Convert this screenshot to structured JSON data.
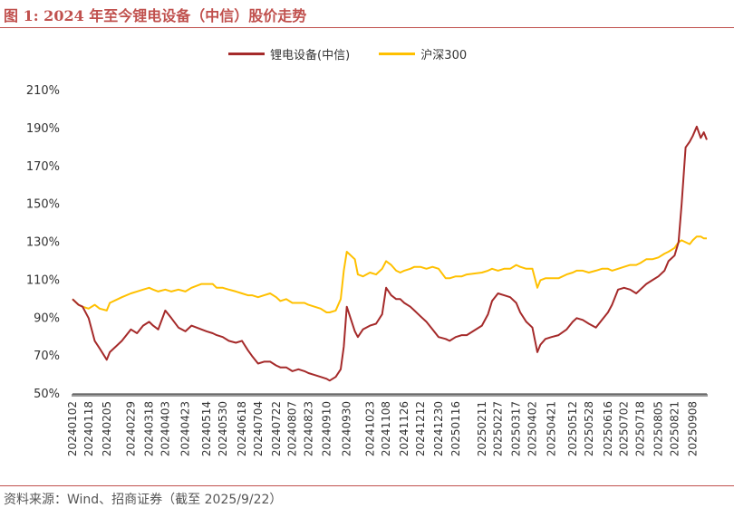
{
  "title": "图 1:  2024 年至今锂电设备（中信）股价走势",
  "source": "资料来源：Wind、招商证券（截至 2025/9/22）",
  "colors": {
    "accent": "#c0504d",
    "series_lithium": "#a52a2a",
    "series_hs300": "#ffc000"
  },
  "chart_data": {
    "type": "line",
    "ylim": [
      0.5,
      2.1
    ],
    "yticks": [
      "50%",
      "70%",
      "90%",
      "110%",
      "130%",
      "150%",
      "170%",
      "190%",
      "210%"
    ],
    "xtick_labels": [
      "20240102",
      "20240118",
      "20240205",
      "20240229",
      "20240318",
      "20240403",
      "20240423",
      "20240514",
      "20240530",
      "20240618",
      "20240704",
      "20240722",
      "20240807",
      "20240823",
      "20240910",
      "20240930",
      "20241023",
      "20241108",
      "20241126",
      "20241212",
      "20241230",
      "20250116",
      "20250211",
      "20250227",
      "20250317",
      "20250402",
      "20250421",
      "20250512",
      "20250528",
      "20250616",
      "20250702",
      "20250718",
      "20250805",
      "20250821",
      "20250908"
    ],
    "legend_position": "top",
    "grid": false,
    "series": [
      {
        "name": "锂电设备(中信)",
        "color": "#a52a2a",
        "points": [
          [
            "20240102",
            1.0
          ],
          [
            "20240108",
            0.97
          ],
          [
            "20240112",
            0.96
          ],
          [
            "20240118",
            0.9
          ],
          [
            "20240124",
            0.78
          ],
          [
            "20240129",
            0.74
          ],
          [
            "20240205",
            0.68
          ],
          [
            "20240208",
            0.72
          ],
          [
            "20240220",
            0.78
          ],
          [
            "20240229",
            0.84
          ],
          [
            "20240306",
            0.82
          ],
          [
            "20240312",
            0.86
          ],
          [
            "20240318",
            0.88
          ],
          [
            "20240322",
            0.86
          ],
          [
            "20240327",
            0.84
          ],
          [
            "20240403",
            0.94
          ],
          [
            "20240409",
            0.9
          ],
          [
            "20240416",
            0.85
          ],
          [
            "20240423",
            0.83
          ],
          [
            "20240429",
            0.86
          ],
          [
            "20240509",
            0.84
          ],
          [
            "20240514",
            0.83
          ],
          [
            "20240520",
            0.82
          ],
          [
            "20240524",
            0.81
          ],
          [
            "20240530",
            0.8
          ],
          [
            "20240605",
            0.78
          ],
          [
            "20240612",
            0.77
          ],
          [
            "20240618",
            0.78
          ],
          [
            "20240624",
            0.73
          ],
          [
            "20240628",
            0.7
          ],
          [
            "20240704",
            0.66
          ],
          [
            "20240710",
            0.67
          ],
          [
            "20240716",
            0.67
          ],
          [
            "20240722",
            0.65
          ],
          [
            "20240726",
            0.64
          ],
          [
            "20240801",
            0.64
          ],
          [
            "20240807",
            0.62
          ],
          [
            "20240813",
            0.63
          ],
          [
            "20240819",
            0.62
          ],
          [
            "20240823",
            0.61
          ],
          [
            "20240829",
            0.6
          ],
          [
            "20240904",
            0.59
          ],
          [
            "20240910",
            0.58
          ],
          [
            "20240913",
            0.57
          ],
          [
            "20240919",
            0.59
          ],
          [
            "20240924",
            0.63
          ],
          [
            "20240927",
            0.75
          ],
          [
            "20240930",
            0.96
          ],
          [
            "20241008",
            0.83
          ],
          [
            "20241011",
            0.8
          ],
          [
            "20241016",
            0.84
          ],
          [
            "20241023",
            0.86
          ],
          [
            "20241029",
            0.87
          ],
          [
            "20241104",
            0.92
          ],
          [
            "20241108",
            1.06
          ],
          [
            "20241113",
            1.02
          ],
          [
            "20241118",
            1.0
          ],
          [
            "20241122",
            1.0
          ],
          [
            "20241126",
            0.98
          ],
          [
            "20241202",
            0.96
          ],
          [
            "20241206",
            0.94
          ],
          [
            "20241212",
            0.91
          ],
          [
            "20241218",
            0.88
          ],
          [
            "20241224",
            0.84
          ],
          [
            "20241230",
            0.8
          ],
          [
            "20250106",
            0.79
          ],
          [
            "20250110",
            0.78
          ],
          [
            "20250116",
            0.8
          ],
          [
            "20250122",
            0.81
          ],
          [
            "20250127",
            0.81
          ],
          [
            "20250211",
            0.86
          ],
          [
            "20250217",
            0.92
          ],
          [
            "20250221",
            0.99
          ],
          [
            "20250227",
            1.03
          ],
          [
            "20250305",
            1.02
          ],
          [
            "20250311",
            1.01
          ],
          [
            "20250317",
            0.98
          ],
          [
            "20250321",
            0.93
          ],
          [
            "20250327",
            0.88
          ],
          [
            "20250402",
            0.85
          ],
          [
            "20250407",
            0.72
          ],
          [
            "20250410",
            0.76
          ],
          [
            "20250415",
            0.79
          ],
          [
            "20250421",
            0.8
          ],
          [
            "20250428",
            0.81
          ],
          [
            "20250506",
            0.84
          ],
          [
            "20250512",
            0.88
          ],
          [
            "20250516",
            0.9
          ],
          [
            "20250522",
            0.89
          ],
          [
            "20250528",
            0.87
          ],
          [
            "20250604",
            0.85
          ],
          [
            "20250610",
            0.89
          ],
          [
            "20250616",
            0.93
          ],
          [
            "20250620",
            0.97
          ],
          [
            "20250626",
            1.05
          ],
          [
            "20250702",
            1.06
          ],
          [
            "20250708",
            1.05
          ],
          [
            "20250714",
            1.03
          ],
          [
            "20250718",
            1.05
          ],
          [
            "20250724",
            1.08
          ],
          [
            "20250730",
            1.1
          ],
          [
            "20250805",
            1.12
          ],
          [
            "20250811",
            1.15
          ],
          [
            "20250815",
            1.2
          ],
          [
            "20250821",
            1.23
          ],
          [
            "20250825",
            1.3
          ],
          [
            "20250828",
            1.5
          ],
          [
            "20250901",
            1.8
          ],
          [
            "20250905",
            1.83
          ],
          [
            "20250908",
            1.86
          ],
          [
            "20250912",
            1.91
          ],
          [
            "20250916",
            1.85
          ],
          [
            "20250919",
            1.88
          ],
          [
            "20250922",
            1.84
          ]
        ]
      },
      {
        "name": "沪深300",
        "color": "#ffc000",
        "points": [
          [
            "20240102",
            1.0
          ],
          [
            "20240108",
            0.97
          ],
          [
            "20240112",
            0.96
          ],
          [
            "20240118",
            0.95
          ],
          [
            "20240124",
            0.97
          ],
          [
            "20240129",
            0.95
          ],
          [
            "20240205",
            0.94
          ],
          [
            "20240208",
            0.98
          ],
          [
            "20240220",
            1.01
          ],
          [
            "20240229",
            1.03
          ],
          [
            "20240306",
            1.04
          ],
          [
            "20240312",
            1.05
          ],
          [
            "20240318",
            1.06
          ],
          [
            "20240322",
            1.05
          ],
          [
            "20240327",
            1.04
          ],
          [
            "20240403",
            1.05
          ],
          [
            "20240409",
            1.04
          ],
          [
            "20240416",
            1.05
          ],
          [
            "20240423",
            1.04
          ],
          [
            "20240429",
            1.06
          ],
          [
            "20240509",
            1.08
          ],
          [
            "20240514",
            1.08
          ],
          [
            "20240520",
            1.08
          ],
          [
            "20240524",
            1.06
          ],
          [
            "20240530",
            1.06
          ],
          [
            "20240605",
            1.05
          ],
          [
            "20240612",
            1.04
          ],
          [
            "20240618",
            1.03
          ],
          [
            "20240624",
            1.02
          ],
          [
            "20240628",
            1.02
          ],
          [
            "20240704",
            1.01
          ],
          [
            "20240710",
            1.02
          ],
          [
            "20240716",
            1.03
          ],
          [
            "20240722",
            1.01
          ],
          [
            "20240726",
            0.99
          ],
          [
            "20240801",
            1.0
          ],
          [
            "20240807",
            0.98
          ],
          [
            "20240813",
            0.98
          ],
          [
            "20240819",
            0.98
          ],
          [
            "20240823",
            0.97
          ],
          [
            "20240829",
            0.96
          ],
          [
            "20240904",
            0.95
          ],
          [
            "20240910",
            0.93
          ],
          [
            "20240913",
            0.93
          ],
          [
            "20240919",
            0.94
          ],
          [
            "20240924",
            1.0
          ],
          [
            "20240927",
            1.15
          ],
          [
            "20240930",
            1.25
          ],
          [
            "20241008",
            1.21
          ],
          [
            "20241011",
            1.13
          ],
          [
            "20241016",
            1.12
          ],
          [
            "20241023",
            1.14
          ],
          [
            "20241029",
            1.13
          ],
          [
            "20241104",
            1.16
          ],
          [
            "20241108",
            1.2
          ],
          [
            "20241113",
            1.18
          ],
          [
            "20241118",
            1.15
          ],
          [
            "20241122",
            1.14
          ],
          [
            "20241126",
            1.15
          ],
          [
            "20241202",
            1.16
          ],
          [
            "20241206",
            1.17
          ],
          [
            "20241212",
            1.17
          ],
          [
            "20241218",
            1.16
          ],
          [
            "20241224",
            1.17
          ],
          [
            "20241230",
            1.16
          ],
          [
            "20250106",
            1.11
          ],
          [
            "20250110",
            1.11
          ],
          [
            "20250116",
            1.12
          ],
          [
            "20250122",
            1.12
          ],
          [
            "20250127",
            1.13
          ],
          [
            "20250211",
            1.14
          ],
          [
            "20250217",
            1.15
          ],
          [
            "20250221",
            1.16
          ],
          [
            "20250227",
            1.15
          ],
          [
            "20250305",
            1.16
          ],
          [
            "20250311",
            1.16
          ],
          [
            "20250317",
            1.18
          ],
          [
            "20250321",
            1.17
          ],
          [
            "20250327",
            1.16
          ],
          [
            "20250402",
            1.16
          ],
          [
            "20250407",
            1.06
          ],
          [
            "20250410",
            1.1
          ],
          [
            "20250415",
            1.11
          ],
          [
            "20250421",
            1.11
          ],
          [
            "20250428",
            1.11
          ],
          [
            "20250506",
            1.13
          ],
          [
            "20250512",
            1.14
          ],
          [
            "20250516",
            1.15
          ],
          [
            "20250522",
            1.15
          ],
          [
            "20250528",
            1.14
          ],
          [
            "20250604",
            1.15
          ],
          [
            "20250610",
            1.16
          ],
          [
            "20250616",
            1.16
          ],
          [
            "20250620",
            1.15
          ],
          [
            "20250626",
            1.16
          ],
          [
            "20250702",
            1.17
          ],
          [
            "20250708",
            1.18
          ],
          [
            "20250714",
            1.18
          ],
          [
            "20250718",
            1.19
          ],
          [
            "20250724",
            1.21
          ],
          [
            "20250730",
            1.21
          ],
          [
            "20250805",
            1.22
          ],
          [
            "20250811",
            1.24
          ],
          [
            "20250815",
            1.25
          ],
          [
            "20250821",
            1.27
          ],
          [
            "20250825",
            1.3
          ],
          [
            "20250828",
            1.31
          ],
          [
            "20250901",
            1.3
          ],
          [
            "20250905",
            1.29
          ],
          [
            "20250908",
            1.31
          ],
          [
            "20250912",
            1.33
          ],
          [
            "20250916",
            1.33
          ],
          [
            "20250919",
            1.32
          ],
          [
            "20250922",
            1.32
          ]
        ]
      }
    ]
  }
}
